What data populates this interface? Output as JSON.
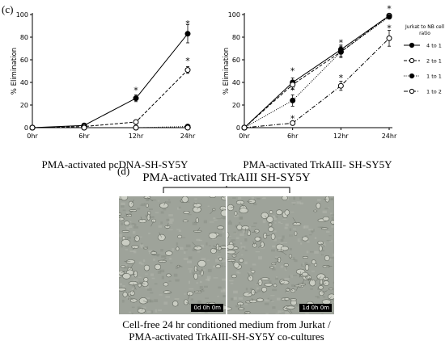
{
  "panel_c_label": "(c)",
  "panel_d_label": "(d)",
  "legend": {
    "title_line1": "Jurkat to NB cell",
    "title_line2": "ratio",
    "entries": [
      "4 to 1",
      "2 to 1",
      "1 to 1",
      "1 to 2"
    ]
  },
  "panel_d": {
    "title": "PMA-activated TrkAIII SH-SY5Y",
    "left_stamp": "0d 0h 0m",
    "right_stamp": "1d 0h 0m",
    "caption_line1": "Cell-free 24 hr conditioned  medium from Jurkat /",
    "caption_line2": "PMA-activated TrkAIII-SH-SY5Y  co-cultures"
  },
  "colors": {
    "axis": "#000000",
    "micrograph_bg": "#9ea39a"
  },
  "chart_data": [
    {
      "type": "line",
      "title": "PMA-activated pcDNA-SH-SY5Y",
      "xlabel": "PMA-activated pcDNA-SH-SY5Y",
      "ylabel": "% Elimination",
      "categories": [
        "0hr",
        "6hr",
        "12hr",
        "24hr"
      ],
      "ylim": [
        0,
        100
      ],
      "yticks": [
        0,
        20,
        40,
        60,
        80,
        100
      ],
      "series": [
        {
          "name": "4 to 1",
          "values": [
            0,
            2,
            26,
            83
          ],
          "errors": [
            0,
            1,
            3,
            8
          ],
          "style": "solid",
          "marker": "filled"
        },
        {
          "name": "2 to 1",
          "values": [
            0,
            1,
            5,
            51
          ],
          "errors": [
            0,
            0.5,
            1,
            3
          ],
          "style": "dashed",
          "marker": "open"
        },
        {
          "name": "1 to 1",
          "values": [
            0,
            0,
            0,
            1
          ],
          "errors": [
            0,
            0,
            0,
            0
          ],
          "style": "dotted",
          "marker": "filled"
        },
        {
          "name": "1 to 2",
          "values": [
            0,
            0,
            0,
            0
          ],
          "errors": [
            0,
            0,
            0,
            0
          ],
          "style": "dashdot",
          "marker": "open"
        }
      ],
      "annotations": [
        {
          "label": "*",
          "category": "12hr",
          "value": 34
        },
        {
          "label": "*",
          "category": "24hr",
          "value": 93
        },
        {
          "label": "*",
          "category": "24hr",
          "value": 60
        }
      ]
    },
    {
      "type": "line",
      "title": "PMA-activated TrkAIII- SH-SY5Y",
      "xlabel": "PMA-activated TrkAIII- SH-SY5Y",
      "ylabel": "% Elimination",
      "categories": [
        "0hr",
        "6hr",
        "12hr",
        "24hr"
      ],
      "ylim": [
        0,
        100
      ],
      "yticks": [
        0,
        20,
        40,
        60,
        80,
        100
      ],
      "series": [
        {
          "name": "4 to 1",
          "values": [
            0,
            40,
            69,
            99
          ],
          "errors": [
            0,
            4,
            4,
            1
          ],
          "style": "solid",
          "marker": "filled"
        },
        {
          "name": "2 to 1",
          "values": [
            0,
            38,
            67,
            99
          ],
          "errors": [
            0,
            4,
            4,
            1
          ],
          "style": "dashed",
          "marker": "open"
        },
        {
          "name": "1 to 1",
          "values": [
            0,
            24,
            67,
            98
          ],
          "errors": [
            0,
            5,
            5,
            1
          ],
          "style": "dotted",
          "marker": "filled"
        },
        {
          "name": "1 to 2",
          "values": [
            0,
            4,
            37,
            79
          ],
          "errors": [
            0,
            1,
            4,
            7
          ],
          "style": "dashdot",
          "marker": "open"
        }
      ],
      "annotations": [
        {
          "label": "*",
          "category": "6hr",
          "value": 51
        },
        {
          "label": "*",
          "category": "6hr",
          "value": 34
        },
        {
          "label": "*",
          "category": "6hr",
          "value": 9
        },
        {
          "label": "*",
          "category": "12hr",
          "value": 76
        },
        {
          "label": "*",
          "category": "12hr",
          "value": 45
        },
        {
          "label": "*",
          "category": "24hr",
          "value": 106
        },
        {
          "label": "*",
          "category": "24hr",
          "value": 89
        }
      ]
    }
  ]
}
